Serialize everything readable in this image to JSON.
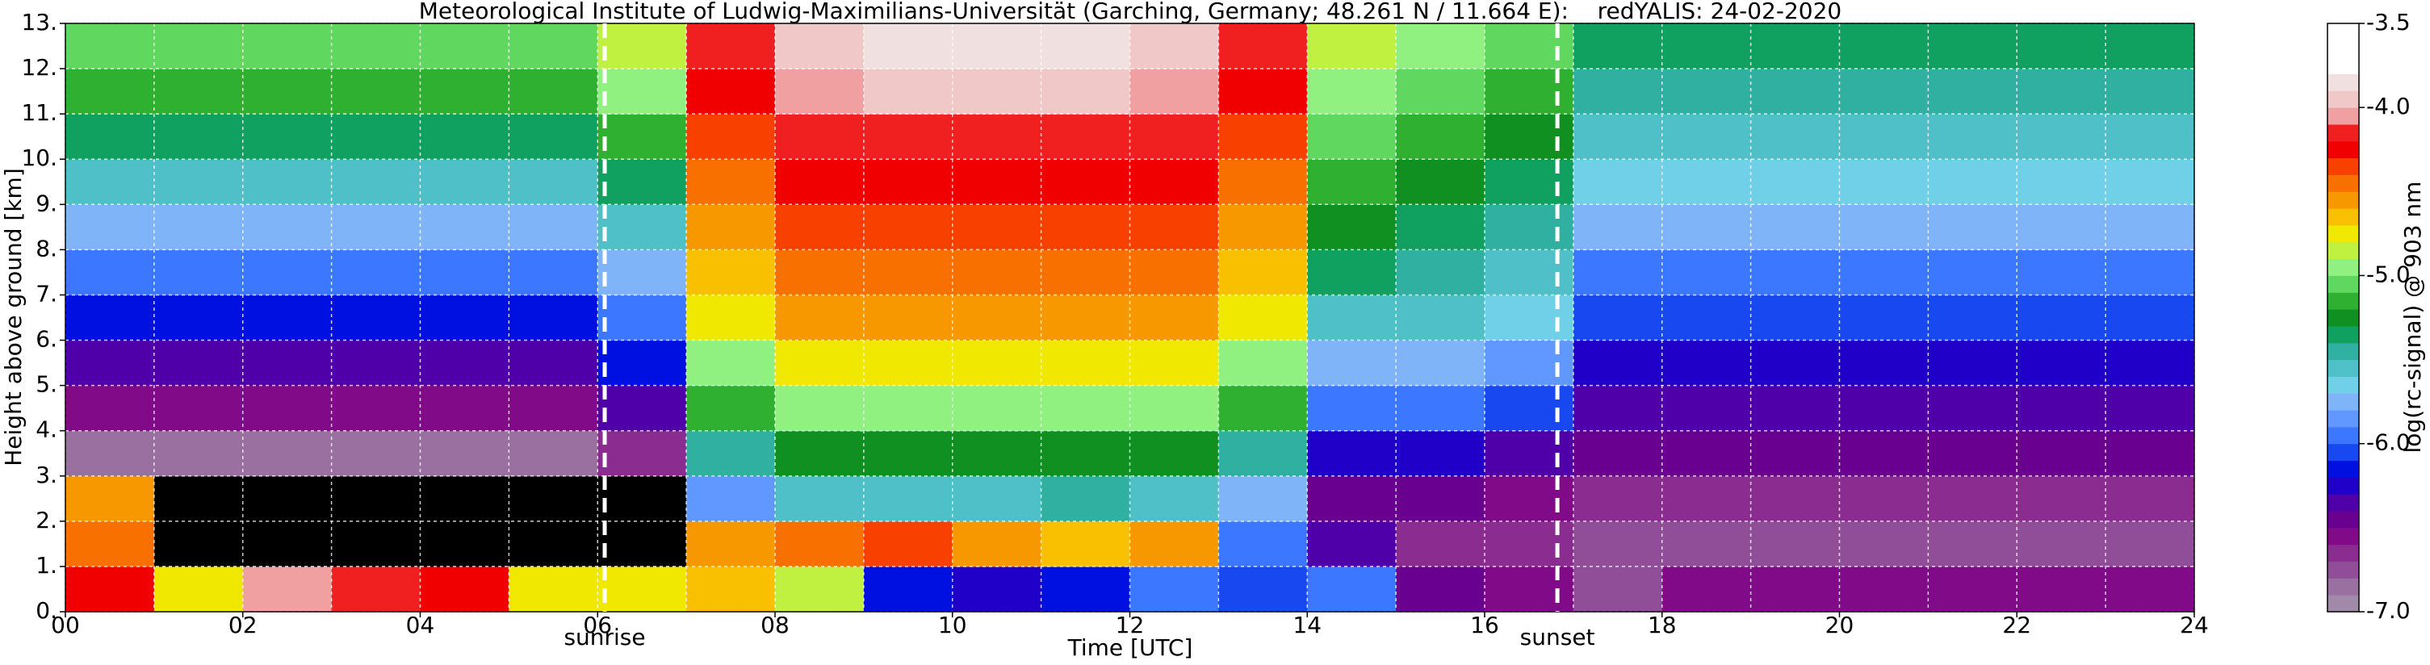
{
  "chart_data": {
    "type": "heatmap",
    "title": "Meteorological Institute of Ludwig-Maximilians-Universität (Garching, Germany; 48.261 N / 11.664 E):    redYALIS: 24-02-2020",
    "x_label": "Time [UTC]",
    "y_label": "Height above ground [km]",
    "colorbar_label": "log(rc-signal) @ 903 nm",
    "xlim": [
      0,
      24
    ],
    "ylim": [
      0,
      13
    ],
    "xticks": [
      {
        "value": 0,
        "label": "00"
      },
      {
        "value": 2,
        "label": "02"
      },
      {
        "value": 4,
        "label": "04"
      },
      {
        "value": 6,
        "label": "06"
      },
      {
        "value": 8,
        "label": "08"
      },
      10,
      12,
      14,
      16,
      18,
      20,
      22,
      24
    ],
    "xminorticks": [
      1,
      3,
      5,
      7,
      9,
      11,
      13,
      15,
      17,
      19,
      21,
      23
    ],
    "yticks": [
      {
        "value": 0,
        "label": "0."
      },
      {
        "value": 1,
        "label": "1."
      },
      {
        "value": 2,
        "label": "2."
      },
      {
        "value": 3,
        "label": "3."
      },
      {
        "value": 4,
        "label": "4."
      },
      {
        "value": 5,
        "label": "5."
      },
      {
        "value": 6,
        "label": "6."
      },
      {
        "value": 7,
        "label": "7."
      },
      {
        "value": 8,
        "label": "8."
      },
      {
        "value": 9,
        "label": "9."
      },
      {
        "value": 10,
        "label": "10."
      },
      {
        "value": 11,
        "label": "11."
      },
      {
        "value": 12,
        "label": "12."
      },
      {
        "value": 13,
        "label": "13."
      }
    ],
    "grid": true,
    "clim": [
      -7,
      -3.5
    ],
    "cticks": [
      {
        "value": -3.5,
        "label": "-3.5"
      },
      {
        "value": -4,
        "label": "-4.0"
      },
      {
        "value": -5,
        "label": "-5.0"
      },
      {
        "value": -6,
        "label": "-6.0"
      },
      {
        "value": -7,
        "label": "-7.0"
      }
    ],
    "under_color": "#000000",
    "colors": [
      "#a08aa8",
      "#9a70a0",
      "#904e98",
      "#8a2c90",
      "#800a88",
      "#6a0090",
      "#5000a8",
      "#2000c8",
      "#0010e0",
      "#1848f0",
      "#3c78ff",
      "#6098ff",
      "#80b4f8",
      "#70d0e8",
      "#50c0c8",
      "#30b0a0",
      "#10a060",
      "#109020",
      "#30b030",
      "#60d860",
      "#90f080",
      "#c0f040",
      "#f0e800",
      "#f8c000",
      "#f89800",
      "#f87000",
      "#f84000",
      "#f00000",
      "#f02020",
      "#f0a0a0",
      "#f0c8c8",
      "#f0e0e0",
      "#ffffff",
      "#ffffff",
      "#ffffff"
    ],
    "x": [
      0.5,
      1.5,
      2.5,
      3.5,
      4.5,
      5.5,
      6.5,
      7.5,
      8.5,
      9.5,
      10.5,
      11.5,
      12.5,
      13.5,
      14.5,
      15.5,
      16.5,
      17.5,
      18.5,
      19.5,
      20.5,
      21.5,
      22.5,
      23.5
    ],
    "y": [
      0.5,
      1.5,
      2.5,
      3.5,
      4.5,
      5.5,
      6.5,
      7.5,
      8.5,
      9.5,
      10.5,
      11.5,
      12.5
    ],
    "z": [
      [
        -4.3,
        -4.8,
        -4.1,
        -4.2,
        -4.3,
        -4.8,
        -4.8,
        -4.7,
        -4.9,
        -6.2,
        -6.3,
        -6.2,
        -6.0,
        -6.1,
        -6.0,
        -6.5,
        -6.6,
        -6.8,
        -6.6,
        -6.6,
        -6.6,
        -6.6,
        -6.6,
        -6.6
      ],
      [
        -4.5,
        -7.5,
        -7.5,
        -7.5,
        -7.5,
        -7.5,
        -7.5,
        -4.6,
        -4.5,
        -4.4,
        -4.6,
        -4.7,
        -4.6,
        -6.0,
        -6.4,
        -6.7,
        -6.7,
        -6.8,
        -6.8,
        -6.8,
        -6.8,
        -6.8,
        -6.8,
        -6.8
      ],
      [
        -4.6,
        -7.5,
        -7.5,
        -7.5,
        -7.5,
        -7.5,
        -7.2,
        -5.9,
        -5.6,
        -5.6,
        -5.6,
        -5.5,
        -5.6,
        -5.8,
        -6.5,
        -6.5,
        -6.6,
        -6.7,
        -6.7,
        -6.7,
        -6.7,
        -6.7,
        -6.7,
        -6.7
      ],
      [
        -6.9,
        -6.9,
        -6.9,
        -6.9,
        -6.9,
        -6.9,
        -6.7,
        -5.5,
        -5.3,
        -5.3,
        -5.3,
        -5.3,
        -5.3,
        -5.5,
        -6.3,
        -6.3,
        -6.4,
        -6.5,
        -6.5,
        -6.5,
        -6.5,
        -6.5,
        -6.5,
        -6.5
      ],
      [
        -6.6,
        -6.6,
        -6.6,
        -6.6,
        -6.6,
        -6.6,
        -6.4,
        -5.2,
        -5.0,
        -5.0,
        -5.0,
        -5.0,
        -5.0,
        -5.2,
        -6.0,
        -6.0,
        -6.1,
        -6.4,
        -6.4,
        -6.4,
        -6.4,
        -6.4,
        -6.4,
        -6.4
      ],
      [
        -6.4,
        -6.4,
        -6.4,
        -6.4,
        -6.4,
        -6.4,
        -6.2,
        -5.0,
        -4.8,
        -4.8,
        -4.8,
        -4.8,
        -4.8,
        -5.0,
        -5.8,
        -5.8,
        -5.9,
        -6.3,
        -6.3,
        -6.3,
        -6.3,
        -6.3,
        -6.3,
        -6.3
      ],
      [
        -6.2,
        -6.2,
        -6.2,
        -6.2,
        -6.2,
        -6.2,
        -6.0,
        -4.8,
        -4.6,
        -4.6,
        -4.6,
        -4.6,
        -4.6,
        -4.8,
        -5.6,
        -5.6,
        -5.7,
        -6.1,
        -6.1,
        -6.1,
        -6.1,
        -6.1,
        -6.1,
        -6.1
      ],
      [
        -6.0,
        -6.0,
        -6.0,
        -6.0,
        -6.0,
        -6.0,
        -5.8,
        -4.7,
        -4.5,
        -4.5,
        -4.5,
        -4.5,
        -4.5,
        -4.7,
        -5.4,
        -5.5,
        -5.6,
        -6.0,
        -6.0,
        -6.0,
        -6.0,
        -6.0,
        -6.0,
        -6.0
      ],
      [
        -5.8,
        -5.8,
        -5.8,
        -5.8,
        -5.8,
        -5.8,
        -5.6,
        -4.6,
        -4.4,
        -4.4,
        -4.4,
        -4.4,
        -4.4,
        -4.6,
        -5.3,
        -5.4,
        -5.5,
        -5.8,
        -5.8,
        -5.8,
        -5.8,
        -5.8,
        -5.8,
        -5.8
      ],
      [
        -5.6,
        -5.6,
        -5.6,
        -5.6,
        -5.6,
        -5.6,
        -5.4,
        -4.5,
        -4.3,
        -4.3,
        -4.3,
        -4.3,
        -4.3,
        -4.5,
        -5.2,
        -5.3,
        -5.4,
        -5.7,
        -5.7,
        -5.7,
        -5.7,
        -5.7,
        -5.7,
        -5.7
      ],
      [
        -5.4,
        -5.4,
        -5.4,
        -5.4,
        -5.4,
        -5.4,
        -5.2,
        -4.4,
        -4.2,
        -4.2,
        -4.2,
        -4.2,
        -4.2,
        -4.4,
        -5.1,
        -5.2,
        -5.3,
        -5.6,
        -5.6,
        -5.6,
        -5.6,
        -5.6,
        -5.6,
        -5.6
      ],
      [
        -5.2,
        -5.2,
        -5.2,
        -5.2,
        -5.2,
        -5.2,
        -5.0,
        -4.3,
        -4.1,
        -4.0,
        -4.0,
        -4.0,
        -4.1,
        -4.3,
        -5.0,
        -5.1,
        -5.2,
        -5.5,
        -5.5,
        -5.5,
        -5.5,
        -5.5,
        -5.5,
        -5.5
      ],
      [
        -5.1,
        -5.1,
        -5.1,
        -5.1,
        -5.1,
        -5.1,
        -4.9,
        -4.2,
        -4.0,
        -3.9,
        -3.9,
        -3.9,
        -4.0,
        -4.2,
        -4.9,
        -5.0,
        -5.1,
        -5.4,
        -5.4,
        -5.4,
        -5.4,
        -5.4,
        -5.4,
        -5.4
      ]
    ],
    "annotations": [
      {
        "text": "sunrise",
        "x": 6.08
      },
      {
        "text": "sunset",
        "x": 16.82
      }
    ]
  }
}
